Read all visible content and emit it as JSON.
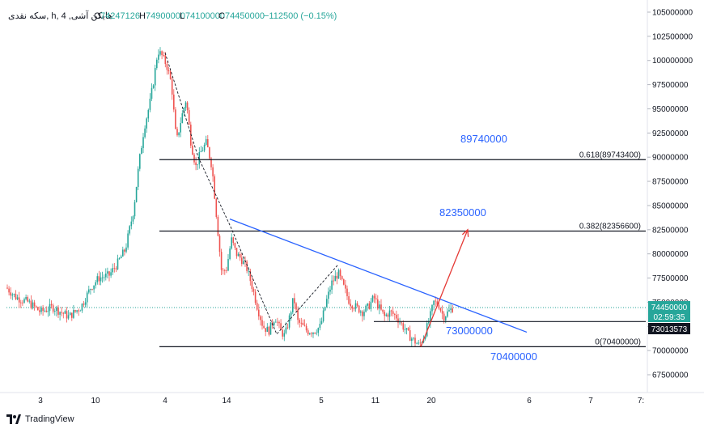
{
  "legend": {
    "symbol": "سکه نقدی, h, هایکن آشی, 4",
    "open_label": "O",
    "open": "74247126",
    "high_label": "H",
    "high": "74900000",
    "low_label": "L",
    "low": "74100000",
    "close_label": "C",
    "close": "74450000",
    "change": "−112500 (−0.15%)"
  },
  "price_tag": {
    "price": "74450000",
    "countdown": "02:59:35"
  },
  "level_tag": "73013573",
  "logo_text": "TradingView",
  "colors": {
    "up": "#26a69a",
    "down": "#ef5350",
    "trend": "#2962ff",
    "target": "#e53935",
    "zigzag": "#131722"
  },
  "chart_data": {
    "type": "candlestick",
    "y_axis_ticks": [
      "105000000",
      "102500000",
      "100000000",
      "97500000",
      "95000000",
      "92500000",
      "90000000",
      "87500000",
      "85000000",
      "82500000",
      "80000000",
      "77500000",
      "75000000",
      "72500000",
      "70000000",
      "67500000"
    ],
    "ylim": [
      66000000,
      106000000
    ],
    "x_axis_ticks": [
      "3",
      "10",
      "4",
      "14",
      "5",
      "11",
      "20",
      "6",
      "7",
      "7:"
    ],
    "fib_levels": [
      {
        "label": "0.618(89743400)",
        "value": 89743400
      },
      {
        "label": "0.382(82356600)",
        "value": 82356600
      },
      {
        "label": "0(70400000)",
        "value": 70400000
      }
    ],
    "annotations": [
      {
        "text": "89740000"
      },
      {
        "text": "82350000"
      },
      {
        "text": "73000000"
      },
      {
        "text": "70400000"
      }
    ],
    "support_level": 73000000,
    "last_price": 74450000
  }
}
